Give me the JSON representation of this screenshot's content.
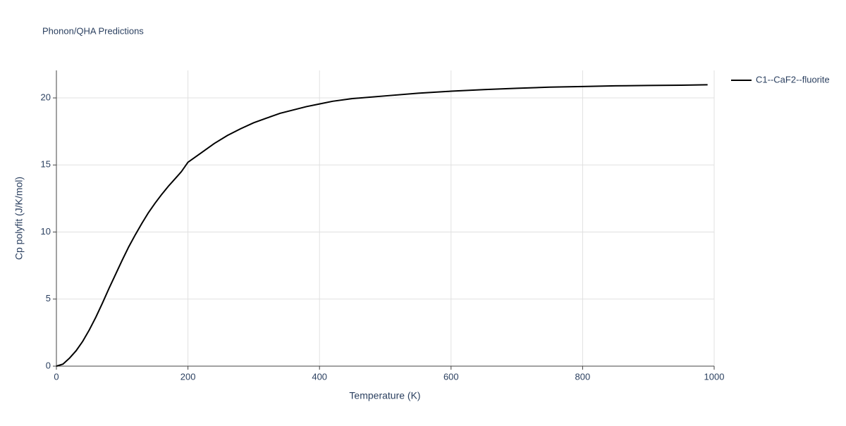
{
  "chart_data": {
    "type": "line",
    "title": "Phonon/QHA Predictions",
    "x_label": "Temperature (K)",
    "y_label": "Cp polyfit (J/K/mol)",
    "x": [
      0,
      10,
      20,
      30,
      40,
      50,
      60,
      70,
      80,
      90,
      100,
      110,
      120,
      130,
      140,
      150,
      160,
      170,
      180,
      190,
      200,
      220,
      240,
      260,
      280,
      300,
      320,
      340,
      360,
      380,
      400,
      420,
      450,
      500,
      550,
      600,
      650,
      700,
      750,
      800,
      850,
      900,
      950,
      990
    ],
    "series": [
      {
        "name": "C1--CaF2--fluorite",
        "color": "#000000",
        "values": [
          0,
          0.15,
          0.6,
          1.15,
          1.85,
          2.7,
          3.65,
          4.7,
          5.8,
          6.85,
          7.9,
          8.9,
          9.8,
          10.65,
          11.45,
          12.15,
          12.8,
          13.4,
          13.95,
          14.5,
          15.2,
          15.9,
          16.6,
          17.2,
          17.7,
          18.15,
          18.5,
          18.85,
          19.1,
          19.35,
          19.55,
          19.75,
          19.95,
          20.15,
          20.35,
          20.5,
          20.62,
          20.72,
          20.8,
          20.85,
          20.9,
          20.93,
          20.95,
          20.98
        ]
      }
    ],
    "xlim": [
      0,
      1000
    ],
    "xticks": [
      0,
      200,
      400,
      600,
      800,
      1000
    ],
    "ylim": [
      0,
      22.05
    ],
    "yticks": [
      0,
      5,
      10,
      15,
      20
    ],
    "grid": true
  }
}
